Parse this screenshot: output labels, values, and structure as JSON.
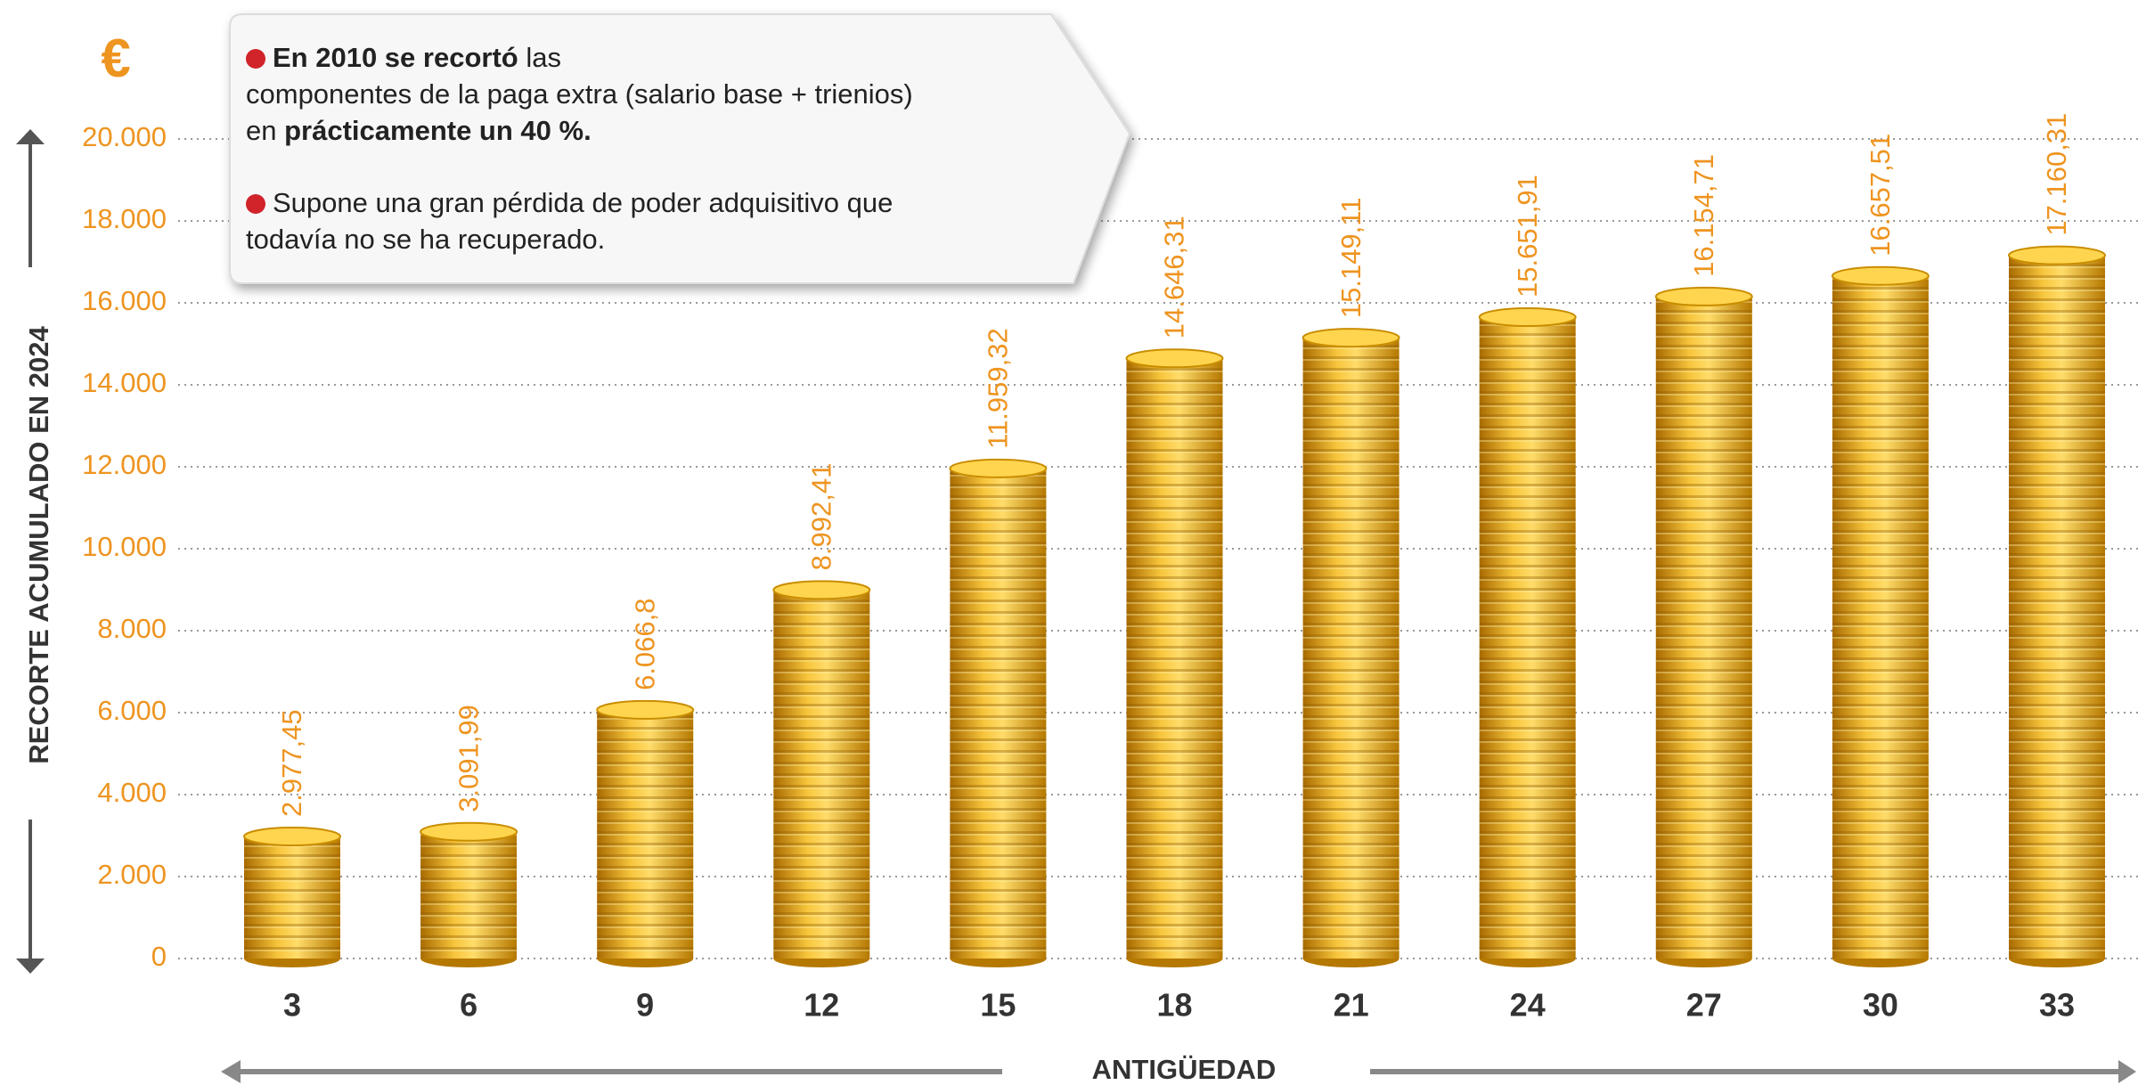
{
  "chart_data": {
    "type": "bar",
    "unit_label": "€",
    "y_axis_label": "RECORTE ACUMULADO EN 2024",
    "x_axis_label": "ANTIGÜEDAD",
    "categories": [
      "3",
      "6",
      "9",
      "12",
      "15",
      "18",
      "21",
      "24",
      "27",
      "30",
      "33"
    ],
    "values": [
      2977.45,
      3091.99,
      6066.8,
      8992.41,
      11959.32,
      14646.31,
      15149.11,
      15651.91,
      16154.71,
      16657.51,
      17160.31
    ],
    "value_labels": [
      "2.977,45",
      "3.091,99",
      "6.066,8",
      "8.992,41",
      "11.959,32",
      "14.646,31",
      "15.149,11",
      "15.651,91",
      "16.154,71",
      "16.657,51",
      "17.160,31"
    ],
    "color": "#e8a317",
    "label_color": "#ee9420",
    "ylim": [
      0,
      20000
    ],
    "yticks": [
      0,
      {
        "value": 2000,
        "label": "2.000"
      },
      {
        "value": 4000,
        "label": "4.000"
      },
      {
        "value": 6000,
        "label": "6.000"
      },
      {
        "value": 8000,
        "label": "8.000"
      },
      {
        "value": 10000,
        "label": "10.000"
      },
      {
        "value": 12000,
        "label": "12.000"
      },
      {
        "value": 14000,
        "label": "14.000"
      },
      {
        "value": 16000,
        "label": "16.000"
      },
      {
        "value": 18000,
        "label": "18.000"
      },
      {
        "value": 20000,
        "label": "20.000"
      }
    ],
    "grid": true,
    "annotation": {
      "paragraph_1": [
        "En 2010 se recortó",
        "las",
        "componentes de la paga extra (salario base + trienios)",
        "en",
        "prácticamente un 40 %."
      ],
      "paragraph_2": [
        "Supone una gran pérdida de poder adquisitivo que",
        "todavía no se ha recuperado."
      ]
    }
  }
}
